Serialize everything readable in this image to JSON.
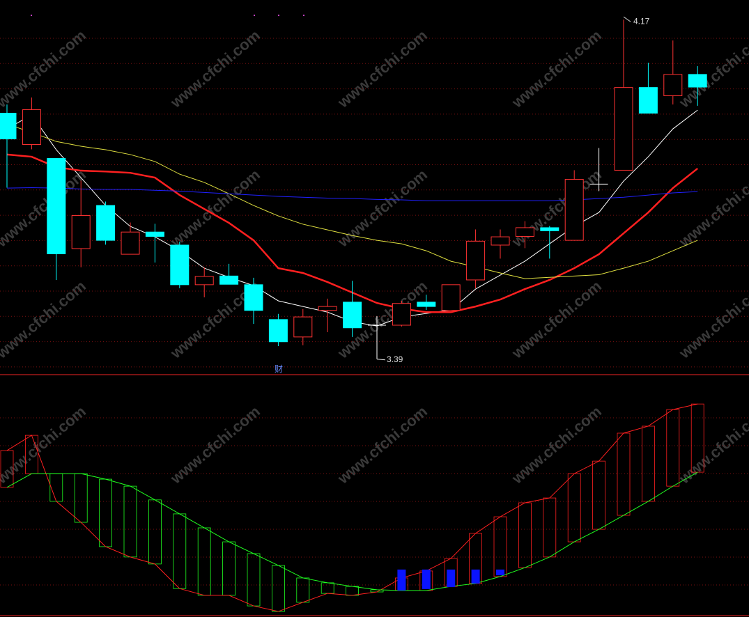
{
  "chart_data": {
    "type": "candlestick",
    "ylim": [
      3.356,
      4.215
    ],
    "open": [
      3.955,
      3.883,
      3.851,
      3.644,
      3.743,
      3.631,
      3.682,
      3.652,
      3.561,
      3.581,
      3.561,
      3.481,
      3.441,
      3.502,
      3.521,
      3.468,
      3.468,
      3.521,
      3.502,
      3.572,
      3.652,
      3.672,
      3.692,
      3.663,
      3.792,
      3.824,
      4.014,
      3.995,
      4.044
    ],
    "close": [
      3.896,
      3.963,
      3.632,
      3.72,
      3.663,
      3.682,
      3.672,
      3.561,
      3.58,
      3.562,
      3.502,
      3.43,
      3.487,
      3.511,
      3.462,
      3.468,
      3.518,
      3.511,
      3.561,
      3.661,
      3.671,
      3.692,
      3.685,
      3.803,
      3.792,
      4.014,
      3.955,
      4.044,
      4.015
    ],
    "high": [
      3.975,
      3.991,
      3.851,
      3.8,
      3.752,
      3.704,
      3.701,
      3.66,
      3.601,
      3.609,
      3.577,
      3.494,
      3.505,
      3.529,
      3.57,
      3.489,
      3.524,
      3.538,
      3.561,
      3.688,
      3.688,
      3.707,
      3.696,
      3.824,
      3.875,
      4.17,
      4.071,
      4.122,
      4.063
    ],
    "low": [
      3.784,
      3.872,
      3.572,
      3.601,
      3.653,
      3.631,
      3.612,
      3.553,
      3.532,
      3.562,
      3.471,
      3.42,
      3.422,
      3.452,
      3.441,
      3.39,
      3.465,
      3.503,
      3.502,
      3.553,
      3.621,
      3.645,
      3.621,
      3.663,
      3.776,
      3.824,
      3.955,
      3.975,
      3.972
    ],
    "up_color": "#ff3232",
    "down_color": "#00ffff",
    "flat_color": "#ffffff",
    "ma": [
      {
        "color": "#ffffff",
        "width": 1,
        "values": [
          3.919,
          3.951,
          3.871,
          3.807,
          3.743,
          3.695,
          3.671,
          3.639,
          3.599,
          3.578,
          3.559,
          3.524,
          3.511,
          3.498,
          3.476,
          3.466,
          3.487,
          3.495,
          3.503,
          3.551,
          3.583,
          3.615,
          3.655,
          3.695,
          3.727,
          3.799,
          3.855,
          3.919,
          3.962
        ]
      },
      {
        "color": "#ff2020",
        "width": 2.5,
        "values": [
          3.86,
          3.855,
          3.831,
          3.823,
          3.821,
          3.818,
          3.807,
          3.767,
          3.735,
          3.703,
          3.663,
          3.599,
          3.588,
          3.567,
          3.543,
          3.519,
          3.506,
          3.498,
          3.498,
          3.511,
          3.527,
          3.551,
          3.572,
          3.599,
          3.631,
          3.679,
          3.727,
          3.783,
          3.828
        ]
      },
      {
        "color": "#e0e040",
        "width": 1,
        "values": [
          3.93,
          3.911,
          3.89,
          3.879,
          3.871,
          3.86,
          3.844,
          3.815,
          3.796,
          3.77,
          3.743,
          3.719,
          3.7,
          3.687,
          3.674,
          3.663,
          3.655,
          3.639,
          3.615,
          3.602,
          3.588,
          3.575,
          3.578,
          3.581,
          3.584,
          3.599,
          3.615,
          3.639,
          3.663
        ]
      },
      {
        "color": "#2020ff",
        "width": 1,
        "values": [
          3.783,
          3.784,
          3.783,
          3.781,
          3.78,
          3.78,
          3.778,
          3.776,
          3.773,
          3.77,
          3.767,
          3.764,
          3.762,
          3.76,
          3.759,
          3.757,
          3.756,
          3.754,
          3.754,
          3.754,
          3.754,
          3.754,
          3.754,
          3.756,
          3.759,
          3.762,
          3.767,
          3.772,
          3.775
        ]
      }
    ],
    "indicator": {
      "ylim": [
        0,
        100
      ],
      "a": [
        69.1,
        75.4,
        48.0,
        39.3,
        29.2,
        24.9,
        22.0,
        11.8,
        9.0,
        9.0,
        4.6,
        2.3,
        6.1,
        9.8,
        9.0,
        10.4,
        16.2,
        19.1,
        24.3,
        34.7,
        41.6,
        47.4,
        49.4,
        59.5,
        64.7,
        76.3,
        79.2,
        86.1,
        88.4
      ],
      "b": [
        53.8,
        59.5,
        59.5,
        59.5,
        57.2,
        54.3,
        48.6,
        42.8,
        37.0,
        31.2,
        26.3,
        21.4,
        16.2,
        14.2,
        12.7,
        11.3,
        11.0,
        11.0,
        12.7,
        13.9,
        16.8,
        20.5,
        24.9,
        31.2,
        36.4,
        42.2,
        48.0,
        54.3,
        60.1
      ],
      "a_color": "#ff2020",
      "b_color": "#20ff20",
      "blue_high": [
        null,
        null,
        null,
        null,
        null,
        null,
        null,
        null,
        null,
        null,
        null,
        null,
        null,
        null,
        null,
        null,
        19.7,
        19.7,
        19.7,
        19.7,
        19.7,
        null,
        null,
        null,
        null,
        null,
        null,
        null,
        null
      ],
      "blue_low": [
        null,
        null,
        null,
        null,
        null,
        null,
        null,
        null,
        null,
        null,
        null,
        null,
        null,
        null,
        null,
        null,
        11.0,
        11.6,
        12.4,
        13.9,
        17.3,
        null,
        null,
        null,
        null,
        null,
        null,
        null,
        null
      ],
      "blue_color": "#0a14ff"
    },
    "marker_text": "财",
    "watermark": "www.cfchi.com"
  }
}
